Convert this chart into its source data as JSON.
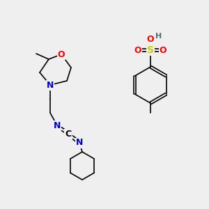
{
  "bg_color": "#efefef",
  "atom_colors": {
    "C": "#000000",
    "N": "#0000cc",
    "O": "#ff0000",
    "S": "#cccc00",
    "H": "#507070"
  },
  "bond_color": "#000000",
  "line_width": 1.2,
  "figsize": [
    3.0,
    3.0
  ],
  "dpi": 100
}
